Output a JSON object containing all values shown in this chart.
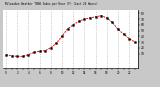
{
  "title": "Milwaukee Weather THSW Index per Hour (F) (Last 24 Hours)",
  "background_color": "#c8c8c8",
  "plot_bg_color": "#ffffff",
  "line_color": "#ff0000",
  "marker_color": "#000000",
  "text_color": "#000000",
  "grid_color": "#aaaaaa",
  "border_color": "#000000",
  "ylim": [
    -15,
    85
  ],
  "ytick_values": [
    10,
    20,
    30,
    40,
    50,
    60,
    70,
    80
  ],
  "ytick_labels": [
    "10",
    "20",
    "30",
    "40",
    "50",
    "60",
    "70",
    "80"
  ],
  "hours": [
    0,
    1,
    2,
    3,
    4,
    5,
    6,
    7,
    8,
    9,
    10,
    11,
    12,
    13,
    14,
    15,
    16,
    17,
    18,
    19,
    20,
    21,
    22,
    23
  ],
  "values": [
    8,
    6,
    5,
    5,
    8,
    12,
    14,
    15,
    20,
    28,
    40,
    53,
    60,
    66,
    70,
    72,
    74,
    76,
    72,
    64,
    52,
    44,
    36,
    30
  ]
}
